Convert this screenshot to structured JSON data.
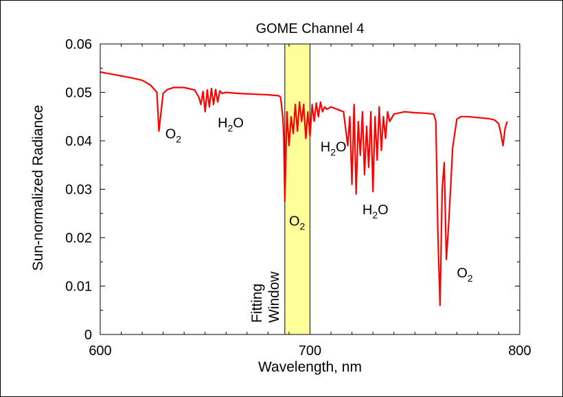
{
  "chart_data": {
    "type": "line",
    "title": "GOME Channel 4",
    "xlabel": "Wavelength, nm",
    "ylabel": "Sun-normalized Radiance",
    "xlim": [
      600,
      800
    ],
    "ylim": [
      0,
      0.06
    ],
    "x_ticks": [
      {
        "value": 600,
        "label": "600"
      },
      {
        "value": 700,
        "label": "700"
      },
      {
        "value": 800,
        "label": "800"
      }
    ],
    "y_ticks": [
      {
        "value": 0,
        "label": "0"
      },
      {
        "value": 0.01,
        "label": "0.01"
      },
      {
        "value": 0.02,
        "label": "0.02"
      },
      {
        "value": 0.03,
        "label": "0.03"
      },
      {
        "value": 0.04,
        "label": "0.04"
      },
      {
        "value": 0.05,
        "label": "0.05"
      },
      {
        "value": 0.06,
        "label": "0.06"
      }
    ],
    "x_minor_step": 10,
    "y_minor_step": 0.005,
    "grid": false,
    "line_color": "#ff0000",
    "band_color": "#ffff99",
    "fitting_window": {
      "x_start": 688,
      "x_end": 700,
      "label_line1": "Fitting",
      "label_line2": "Window"
    },
    "series": [
      {
        "x": [
          600,
          605,
          610,
          615,
          620,
          624,
          627,
          628,
          629,
          630,
          632,
          635,
          640,
          645,
          647,
          648,
          649,
          650,
          651,
          652,
          653,
          654,
          655,
          656,
          657,
          658,
          660,
          665,
          670,
          675,
          680,
          685,
          686,
          687,
          687.5,
          688,
          689,
          690,
          691,
          692,
          693,
          694,
          695,
          696,
          697,
          698,
          699,
          700,
          701,
          702,
          703,
          704,
          705,
          706,
          707,
          708,
          710,
          713,
          716,
          717,
          718,
          719,
          720,
          721,
          722,
          723,
          724,
          725,
          726,
          727,
          728,
          729,
          730,
          731,
          732,
          733,
          734,
          735,
          736,
          737,
          738,
          740,
          745,
          750,
          755,
          759,
          760,
          761,
          762,
          763,
          764,
          765,
          766,
          767,
          768,
          769,
          770,
          772,
          775,
          780,
          785,
          788,
          790,
          791,
          792,
          793,
          794
        ],
        "y": [
          0.0542,
          0.0538,
          0.0534,
          0.053,
          0.0525,
          0.0515,
          0.05,
          0.042,
          0.046,
          0.0498,
          0.0506,
          0.051,
          0.051,
          0.0505,
          0.049,
          0.0475,
          0.0502,
          0.046,
          0.0505,
          0.047,
          0.0508,
          0.0475,
          0.0506,
          0.048,
          0.0503,
          0.0498,
          0.05,
          0.0498,
          0.0497,
          0.0496,
          0.0495,
          0.0493,
          0.049,
          0.045,
          0.041,
          0.0275,
          0.046,
          0.039,
          0.045,
          0.0415,
          0.0475,
          0.042,
          0.048,
          0.044,
          0.0475,
          0.0405,
          0.046,
          0.041,
          0.0475,
          0.044,
          0.0478,
          0.045,
          0.048,
          0.046,
          0.047,
          0.0465,
          0.047,
          0.0465,
          0.046,
          0.0425,
          0.039,
          0.045,
          0.031,
          0.0475,
          0.029,
          0.044,
          0.037,
          0.046,
          0.033,
          0.043,
          0.0345,
          0.046,
          0.0295,
          0.045,
          0.036,
          0.047,
          0.038,
          0.045,
          0.0405,
          0.046,
          0.044,
          0.0455,
          0.046,
          0.0458,
          0.0457,
          0.0455,
          0.044,
          0.02,
          0.006,
          0.03,
          0.0355,
          0.0155,
          0.022,
          0.03,
          0.0385,
          0.0415,
          0.0445,
          0.045,
          0.045,
          0.0448,
          0.0446,
          0.0443,
          0.0435,
          0.0415,
          0.039,
          0.0425,
          0.044
        ]
      }
    ],
    "annotations": [
      {
        "main": "O",
        "sub": "2",
        "after": "",
        "x": 631,
        "y": 0.0405
      },
      {
        "main": "H",
        "sub": "2",
        "after": "O",
        "x": 656,
        "y": 0.0428
      },
      {
        "main": "H",
        "sub": "2",
        "after": "O",
        "x": 705,
        "y": 0.0378
      },
      {
        "main": "O",
        "sub": "2",
        "after": "",
        "x": 690,
        "y": 0.0225
      },
      {
        "main": "H",
        "sub": "2",
        "after": "O",
        "x": 725,
        "y": 0.0248
      },
      {
        "main": "O",
        "sub": "2",
        "after": "",
        "x": 770,
        "y": 0.0118
      }
    ]
  }
}
